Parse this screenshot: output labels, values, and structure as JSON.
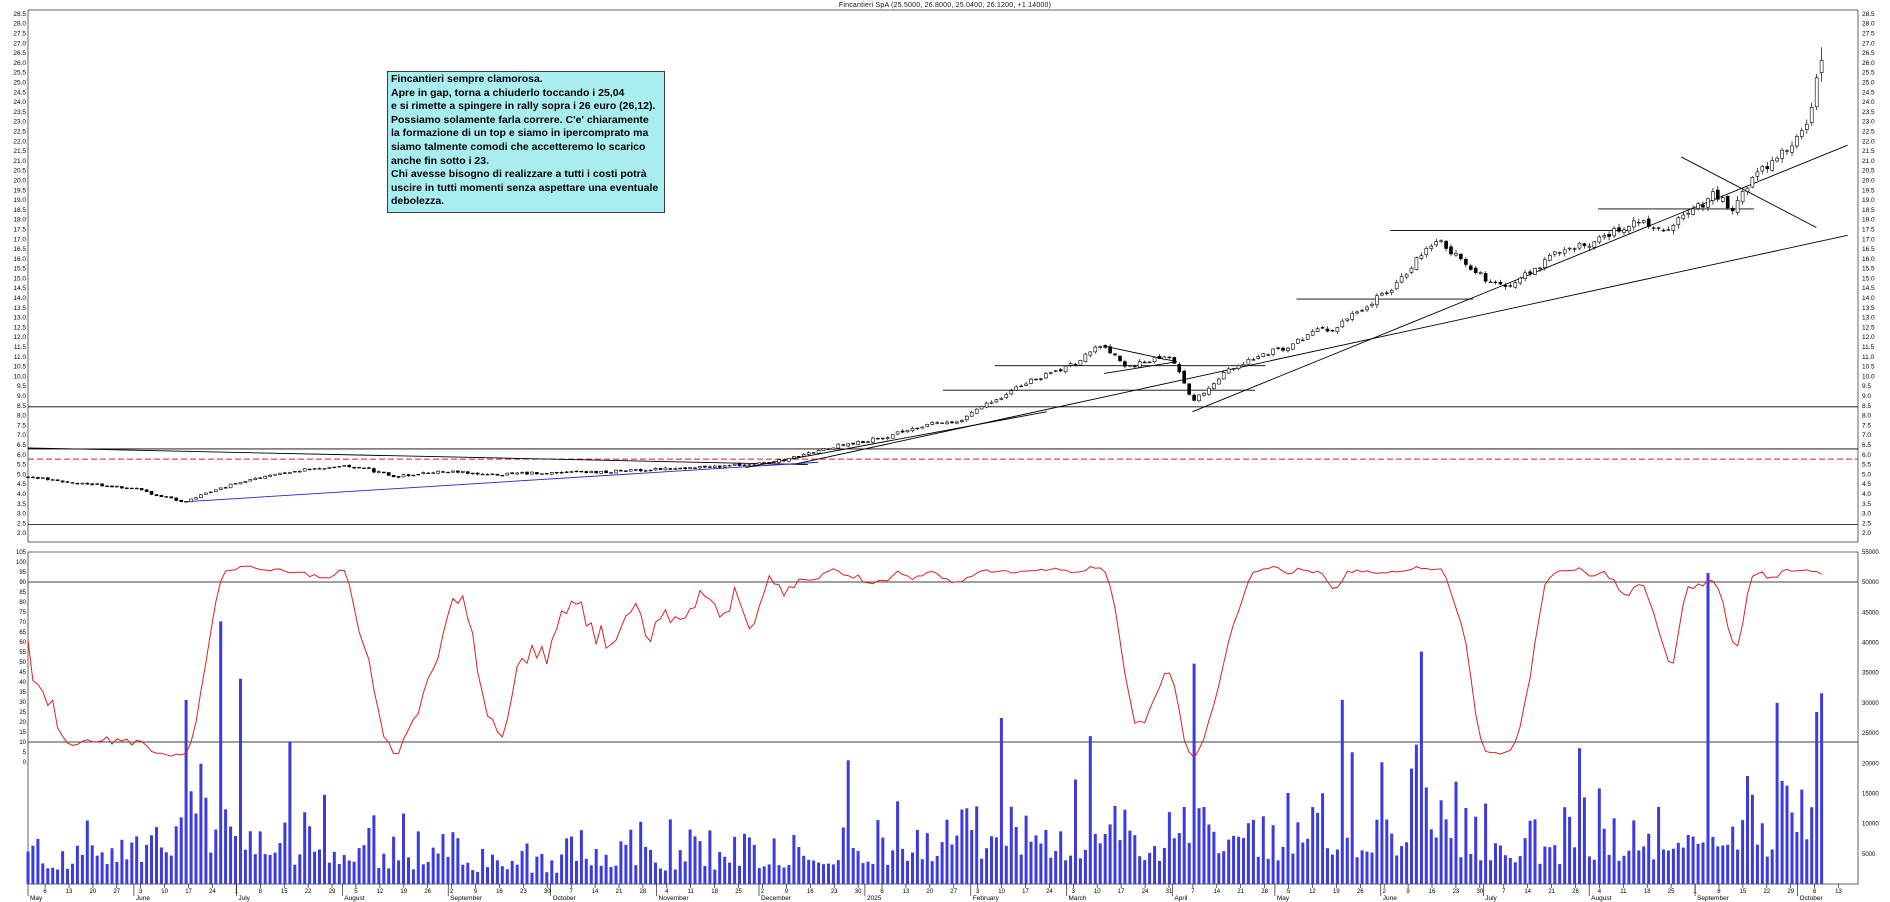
{
  "window": {
    "title": "Fincantieri SpA (25.5000, 26.8000, 25.0400, 26.1200, +1.14000)"
  },
  "annotation": {
    "background": "#a8edf0",
    "lines": [
      "Fincantieri sempre clamorosa.",
      "Apre in gap, torna a chiuderlo toccando i 25,04",
      "e si rimette a spingere in rally sopra i 26 euro (26,12).",
      "Possiamo solamente farla correre. C'e' chiaramente",
      "la formazione di un top e siamo in ipercomprato ma",
      "siamo talmente comodi che accetteremo lo scarico",
      "anche fin sotto i 23.",
      "Chi avesse bisogno di realizzare a tutti i costi potrà",
      "uscire in tutti momenti senza aspettare una eventuale",
      "debolezza."
    ]
  },
  "colors": {
    "background": "#ffffff",
    "candle_up": "#ffffff",
    "candle_down": "#000000",
    "outline": "#000000",
    "volume": "#3b3be0",
    "oscillator": "#e02020",
    "dashed_level": "#cc2222",
    "trend_blue": "#2525cc",
    "annotation_bg": "#a8edf0"
  },
  "chart_data": {
    "type": "candlestick",
    "title": "Fincantieri SpA (25.5000, 26.8000, 25.0400, 26.1200, +1.14000)",
    "symbol": "Fincantieri SpA",
    "ohlc_last": {
      "open": 25.5,
      "high": 26.8,
      "low": 25.04,
      "close": 26.12,
      "change": "+1.14000"
    },
    "panes": [
      {
        "name": "price",
        "series": [
          "candlesticks",
          "trendlines",
          "levels"
        ]
      },
      {
        "name": "lower",
        "series": [
          "oscillator",
          "volume"
        ]
      }
    ],
    "x_axis": {
      "start": "2024-05-01",
      "end": "2025-10-13",
      "tick_unit": "weekly-mondays",
      "month_labels": [
        "May",
        "June",
        "July",
        "August",
        "September",
        "October",
        "November",
        "December",
        "2025",
        "February",
        "March",
        "April",
        "May",
        "June",
        "July",
        "August",
        "September",
        "October"
      ]
    },
    "price_axis": {
      "min": 2.0,
      "max": 28.5,
      "step": 0.5,
      "side": "both"
    },
    "oscillator_axis": {
      "min": 0,
      "max": 105,
      "step": 5,
      "side": "left"
    },
    "volume_axis": {
      "min": 5000,
      "max": 55000,
      "step": 5000,
      "side": "right"
    },
    "levels": {
      "solid_black": [
        8.45,
        6.3,
        2.45
      ],
      "dashed_red": 5.78,
      "oscillator_lines": [
        90,
        10
      ]
    },
    "oscillator": {
      "name": "stochastic-like",
      "range": [
        0,
        100
      ],
      "overbought": 90,
      "oversold": 10,
      "color": "#e02020",
      "derivation": "stochastic_14_smoothed_3_of_price"
    },
    "price_anchors": [
      [
        0.0,
        4.9
      ],
      [
        0.35,
        4.62
      ],
      [
        0.75,
        4.45
      ],
      [
        1.05,
        4.25
      ],
      [
        1.3,
        3.85
      ],
      [
        1.5,
        3.62
      ],
      [
        1.75,
        4.1
      ],
      [
        2.0,
        4.55
      ],
      [
        2.35,
        4.95
      ],
      [
        2.7,
        5.3
      ],
      [
        3.0,
        5.42
      ],
      [
        3.25,
        5.28
      ],
      [
        3.55,
        4.88
      ],
      [
        3.85,
        5.12
      ],
      [
        4.1,
        5.18
      ],
      [
        4.4,
        4.95
      ],
      [
        4.7,
        5.05
      ],
      [
        5.0,
        5.08
      ],
      [
        5.5,
        5.12
      ],
      [
        6.0,
        5.25
      ],
      [
        6.5,
        5.38
      ],
      [
        7.0,
        5.52
      ],
      [
        7.3,
        5.78
      ],
      [
        7.55,
        6.12
      ],
      [
        7.8,
        6.48
      ],
      [
        8.0,
        6.62
      ],
      [
        8.3,
        7.0
      ],
      [
        8.6,
        7.48
      ],
      [
        9.0,
        7.78
      ],
      [
        9.2,
        8.55
      ],
      [
        9.5,
        9.35
      ],
      [
        9.8,
        10.15
      ],
      [
        10.0,
        10.45
      ],
      [
        10.2,
        11.25
      ],
      [
        10.35,
        11.55
      ],
      [
        10.55,
        10.45
      ],
      [
        10.8,
        10.85
      ],
      [
        11.0,
        11.05
      ],
      [
        11.15,
        9.2
      ],
      [
        11.22,
        8.75
      ],
      [
        11.4,
        9.7
      ],
      [
        11.6,
        10.55
      ],
      [
        11.9,
        11.15
      ],
      [
        12.1,
        11.5
      ],
      [
        12.35,
        12.25
      ],
      [
        12.6,
        12.55
      ],
      [
        12.9,
        13.7
      ],
      [
        13.1,
        14.4
      ],
      [
        13.35,
        15.9
      ],
      [
        13.55,
        16.9
      ],
      [
        13.75,
        16.1
      ],
      [
        14.0,
        15.05
      ],
      [
        14.2,
        14.6
      ],
      [
        14.5,
        15.55
      ],
      [
        14.8,
        16.55
      ],
      [
        15.05,
        16.9
      ],
      [
        15.3,
        17.55
      ],
      [
        15.5,
        18.05
      ],
      [
        15.7,
        17.4
      ],
      [
        16.0,
        18.3
      ],
      [
        16.2,
        19.25
      ],
      [
        16.4,
        18.6
      ],
      [
        16.6,
        20.1
      ],
      [
        16.8,
        21.2
      ],
      [
        17.0,
        21.9
      ],
      [
        17.1,
        22.8
      ],
      [
        17.18,
        24.5
      ],
      [
        17.25,
        26.12
      ]
    ],
    "volume_anchors": [
      [
        0,
        7500
      ],
      [
        1.0,
        9000
      ],
      [
        1.5,
        17000
      ],
      [
        2.2,
        12000
      ],
      [
        3.0,
        8500
      ],
      [
        4.0,
        6500
      ],
      [
        5.0,
        6000
      ],
      [
        6.0,
        6500
      ],
      [
        7.0,
        8000
      ],
      [
        7.8,
        11000
      ],
      [
        8.5,
        10000
      ],
      [
        9.3,
        13500
      ],
      [
        10.0,
        12500
      ],
      [
        10.8,
        11000
      ],
      [
        11.2,
        19000
      ],
      [
        12.0,
        12500
      ],
      [
        12.8,
        14500
      ],
      [
        13.5,
        16500
      ],
      [
        14.3,
        10500
      ],
      [
        15.2,
        11500
      ],
      [
        16.1,
        15500
      ],
      [
        16.8,
        14000
      ],
      [
        17.25,
        23000
      ]
    ],
    "volume_spikes": [
      [
        1.5,
        30500
      ],
      [
        1.85,
        43500
      ],
      [
        2.05,
        34000
      ],
      [
        2.5,
        23500
      ],
      [
        7.9,
        20500
      ],
      [
        9.35,
        27500
      ],
      [
        10.2,
        24500
      ],
      [
        11.23,
        36500
      ],
      [
        12.62,
        30500
      ],
      [
        13.42,
        38500
      ],
      [
        14.9,
        22500
      ],
      [
        16.14,
        51500
      ],
      [
        16.82,
        30000
      ],
      [
        17.2,
        28500
      ]
    ],
    "trendlines": [
      {
        "m1": 0.0,
        "p1": 6.35,
        "m2": 7.5,
        "p2": 5.5,
        "color": "#000000"
      },
      {
        "m1": 1.5,
        "p1": 3.6,
        "m2": 7.6,
        "p2": 5.62,
        "color": "#2525cc"
      },
      {
        "m1": 6.9,
        "p1": 5.35,
        "m2": 9.8,
        "p2": 8.2,
        "color": "#000000"
      },
      {
        "m1": 7.4,
        "p1": 5.55,
        "m2": 17.5,
        "p2": 17.2,
        "color": "#000000"
      },
      {
        "m1": 11.2,
        "p1": 8.2,
        "m2": 17.5,
        "p2": 21.8,
        "color": "#000000"
      },
      {
        "m1": 15.9,
        "p1": 21.2,
        "m2": 17.2,
        "p2": 17.6,
        "color": "#000000"
      },
      {
        "m1": 8.8,
        "p1": 9.3,
        "m2": 11.8,
        "p2": 9.3,
        "color": "#000000"
      },
      {
        "m1": 9.3,
        "p1": 10.55,
        "m2": 11.9,
        "p2": 10.55,
        "color": "#000000"
      },
      {
        "m1": 12.2,
        "p1": 13.95,
        "m2": 13.9,
        "p2": 13.95,
        "color": "#000000"
      },
      {
        "m1": 13.1,
        "p1": 17.45,
        "m2": 15.4,
        "p2": 17.45,
        "color": "#000000"
      },
      {
        "m1": 15.1,
        "p1": 18.55,
        "m2": 16.6,
        "p2": 18.55,
        "color": "#000000"
      },
      {
        "m1": 10.35,
        "p1": 11.55,
        "m2": 11.05,
        "p2": 10.75,
        "color": "#000000"
      },
      {
        "m1": 10.35,
        "p1": 10.15,
        "m2": 11.05,
        "p2": 10.75,
        "color": "#000000"
      }
    ],
    "gen": {
      "seed": 1337,
      "days": 364,
      "noise": 0.012,
      "wick": 0.01,
      "total_months": 17.25
    }
  }
}
